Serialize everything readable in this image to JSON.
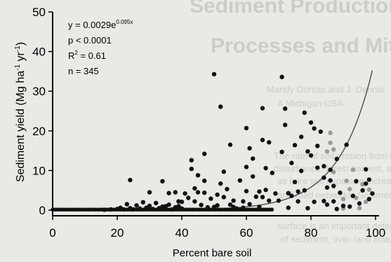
{
  "background_text": [
    "Sediment Production and Transport",
    "Processes and Mitigation",
    "Mandy Dorcas and J. Dennis",
    "A Michigan USA",
    "The rate of soil erosion from bare areas can vary widely in",
    "disturbance, forest harvest, and fire. These sediment yields increase",
    "as bare soil exposure increases to a critical threshold, and many",
    "and road networks. Sediment source studies show that the steep",
    "surface is an important determinant of slope, and the proportion",
    "of sediment, over-land flow, and fine-sediment delivery increase"
  ],
  "annotations": {
    "eq_prefix": "y = 0.0029e",
    "eq_exponent": "0.095x",
    "p": "p < 0.0001",
    "r2_prefix": "R",
    "r2_super": "2",
    "r2_suffix": " = 0.61",
    "n": "n = 345"
  },
  "ylabel": {
    "prefix": "Sediment yield (Mg ha",
    "sup1": "-1",
    "mid": " yr",
    "sup2": "-1",
    "suffix": ")"
  },
  "chart_data": {
    "type": "scatter",
    "xlabel": "Percent bare soil",
    "ylabel": "Sediment yield (Mg ha-1 yr-1)",
    "xlim": [
      0,
      100
    ],
    "ylim": [
      0,
      50
    ],
    "xticks": [
      0,
      20,
      40,
      60,
      80,
      100
    ],
    "yticks": [
      0,
      10,
      20,
      30,
      40,
      50
    ],
    "fit": {
      "a": 0.0029,
      "b": 0.095,
      "x_range": [
        0,
        99
      ]
    },
    "points": [
      [
        16,
        0.1
      ],
      [
        18,
        0.2
      ],
      [
        20,
        0.3
      ],
      [
        21,
        0.6
      ],
      [
        22,
        0.2
      ],
      [
        23,
        1.5
      ],
      [
        24,
        0.5
      ],
      [
        25,
        0.2
      ],
      [
        26,
        1.2
      ],
      [
        27,
        0.4
      ],
      [
        28,
        2.0
      ],
      [
        29,
        0.6
      ],
      [
        30,
        1.1
      ],
      [
        31,
        0.3
      ],
      [
        32,
        1.8
      ],
      [
        33,
        0.5
      ],
      [
        34,
        0.9
      ],
      [
        35,
        0.3
      ],
      [
        36,
        1.4
      ],
      [
        37,
        0.2
      ],
      [
        38,
        0.7
      ],
      [
        39,
        1.0
      ],
      [
        40,
        0.4
      ],
      [
        24,
        7.6
      ],
      [
        30,
        4.5
      ],
      [
        34,
        7.3
      ],
      [
        35,
        1.0
      ],
      [
        36,
        4.3
      ],
      [
        38,
        4.5
      ],
      [
        39,
        2.2
      ],
      [
        40,
        2.1
      ],
      [
        41,
        4.2
      ],
      [
        42,
        3.1
      ],
      [
        43,
        10.4
      ],
      [
        43,
        12.6
      ],
      [
        44,
        5.5
      ],
      [
        44,
        2.2
      ],
      [
        45,
        8.8
      ],
      [
        45,
        4.5
      ],
      [
        46,
        1.3
      ],
      [
        47,
        14.2
      ],
      [
        47,
        4.4
      ],
      [
        47,
        7.4
      ],
      [
        48,
        0.7
      ],
      [
        49,
        2.9
      ],
      [
        50,
        0.8
      ],
      [
        50,
        34.3
      ],
      [
        51,
        3.9
      ],
      [
        51,
        1.2
      ],
      [
        52,
        26.1
      ],
      [
        52,
        6.7
      ],
      [
        53,
        9.7
      ],
      [
        53,
        3.3
      ],
      [
        54,
        5.3
      ],
      [
        55,
        1.4
      ],
      [
        55,
        16.5
      ],
      [
        56,
        2.4
      ],
      [
        56,
        0.8
      ],
      [
        57,
        0.4
      ],
      [
        58,
        7.5
      ],
      [
        59,
        2.2
      ],
      [
        59,
        0.6
      ],
      [
        60,
        4.8
      ],
      [
        60,
        20.7
      ],
      [
        60,
        10.9
      ],
      [
        61,
        1.5
      ],
      [
        61,
        15.6
      ],
      [
        62,
        8.5
      ],
      [
        62,
        13.0
      ],
      [
        63,
        3.4
      ],
      [
        64,
        0.8
      ],
      [
        64,
        4.7
      ],
      [
        65,
        25.7
      ],
      [
        65,
        17.7
      ],
      [
        65,
        3.3
      ],
      [
        66,
        5.1
      ],
      [
        66,
        10.6
      ],
      [
        67,
        2.4
      ],
      [
        67,
        17.1
      ],
      [
        68,
        9.4
      ],
      [
        69,
        4.2
      ],
      [
        70,
        2.4
      ],
      [
        71,
        14.7
      ],
      [
        71,
        33.6
      ],
      [
        72,
        21.5
      ],
      [
        72,
        25.6
      ],
      [
        73,
        0.6
      ],
      [
        73,
        4.3
      ],
      [
        74,
        3.6
      ],
      [
        74,
        11.9
      ],
      [
        75,
        16.4
      ],
      [
        75,
        7.1
      ],
      [
        76,
        2.2
      ],
      [
        76,
        4.7
      ],
      [
        77,
        18.5
      ],
      [
        77,
        9.9
      ],
      [
        78,
        24.6
      ],
      [
        78,
        5.0
      ],
      [
        79,
        0.5
      ],
      [
        79,
        14.8
      ],
      [
        80,
        22.1
      ],
      [
        80,
        13.8
      ],
      [
        81,
        2.1
      ],
      [
        81,
        20.6
      ],
      [
        82,
        16.2
      ],
      [
        82,
        10.7
      ],
      [
        83,
        19.8
      ],
      [
        84,
        11.1
      ],
      [
        84,
        8.2
      ],
      [
        84,
        2.3
      ],
      [
        85,
        1.4
      ],
      [
        85,
        5.7
      ],
      [
        86,
        10.2
      ],
      [
        86,
        7.5
      ],
      [
        87,
        6.1
      ],
      [
        87,
        2.2
      ],
      [
        88,
        12.9
      ],
      [
        88,
        0.3
      ],
      [
        89,
        4.4
      ],
      [
        90,
        1.1
      ],
      [
        91,
        16.5
      ],
      [
        92,
        0.9
      ],
      [
        93,
        3.6
      ],
      [
        94,
        7.3
      ],
      [
        95,
        1.7
      ],
      [
        96,
        5.0
      ],
      [
        97,
        10.3
      ],
      [
        97,
        6.7
      ],
      [
        98,
        2.8
      ],
      [
        98,
        7.7
      ],
      [
        99,
        4.2
      ]
    ],
    "grey_points": [
      [
        85,
        14.8
      ],
      [
        86,
        17.0
      ],
      [
        86,
        19.5
      ],
      [
        87,
        9.6
      ],
      [
        87,
        15.3
      ],
      [
        90,
        0.4
      ],
      [
        90,
        2.8
      ],
      [
        91,
        7.4
      ],
      [
        92,
        5.3
      ],
      [
        93,
        10.2
      ],
      [
        94,
        3.1
      ],
      [
        95,
        0.5
      ],
      [
        96,
        6.5
      ],
      [
        97,
        2.1
      ],
      [
        98,
        5.2
      ]
    ],
    "grid": false,
    "legend": "none"
  }
}
